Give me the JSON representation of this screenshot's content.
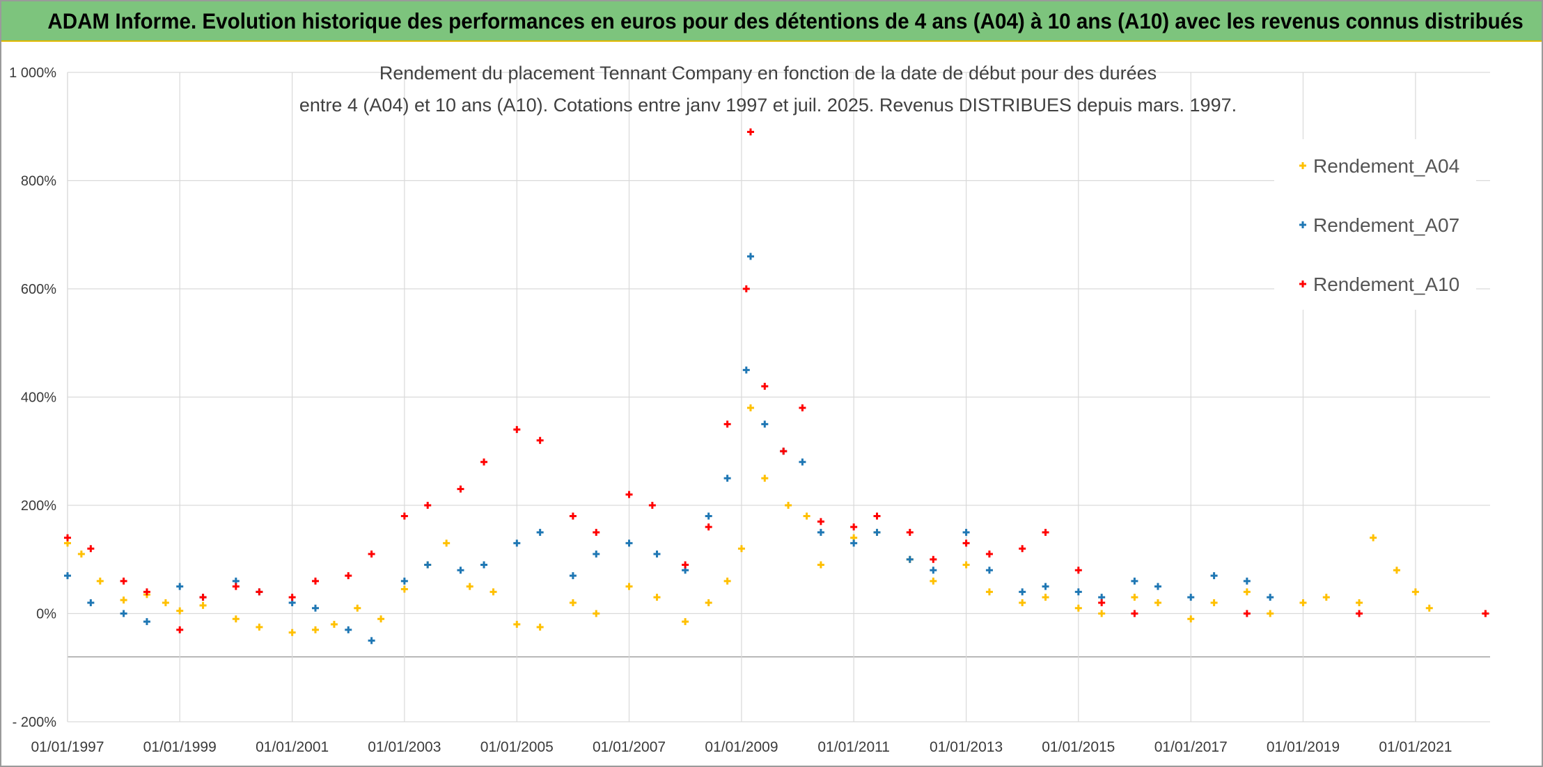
{
  "banner": {
    "text": "ADAM Informe. Evolution historique des performances en euros pour des détentions de 4 ans (A04) à 10 ans (A10) avec les revenus connus distribués"
  },
  "chart_data": {
    "type": "scatter",
    "title_line1": "Rendement du placement Tennant Company en fonction de la date de début pour des durées",
    "title_line2": "entre 4 (A04) et 10 ans (A10). Cotations entre janv 1997 et juil. 2025. Revenus DISTRIBUES depuis mars. 1997.",
    "xlabel": "",
    "ylabel": "",
    "x_range": [
      "1997-01-01",
      "2022-05-01"
    ],
    "ylim": [
      -200,
      1000
    ],
    "y_ticks": [
      {
        "value": -200,
        "label": "- 200%"
      },
      {
        "value": 0,
        "label": "0%"
      },
      {
        "value": 200,
        "label": "200%"
      },
      {
        "value": 400,
        "label": "400%"
      },
      {
        "value": 600,
        "label": "600%"
      },
      {
        "value": 800,
        "label": "800%"
      },
      {
        "value": 1000,
        "label": "1 000%"
      }
    ],
    "x_ticks": [
      "01/01/1997",
      "01/01/1999",
      "01/01/2001",
      "01/01/2003",
      "01/01/2005",
      "01/01/2007",
      "01/01/2009",
      "01/01/2011",
      "01/01/2013",
      "01/01/2015",
      "01/01/2017",
      "01/01/2019",
      "01/01/2021"
    ],
    "grid": true,
    "legend_position": "right",
    "marker": "+",
    "series": [
      {
        "name": "Rendement_A04",
        "color": "#ffc000",
        "points": [
          [
            "1997-01-01",
            130
          ],
          [
            "1997-04-01",
            110
          ],
          [
            "1997-08-01",
            60
          ],
          [
            "1998-01-01",
            25
          ],
          [
            "1998-06-01",
            35
          ],
          [
            "1998-10-01",
            20
          ],
          [
            "1999-01-01",
            5
          ],
          [
            "1999-06-01",
            15
          ],
          [
            "2000-01-01",
            -10
          ],
          [
            "2000-06-01",
            -25
          ],
          [
            "2001-01-01",
            -35
          ],
          [
            "2001-06-01",
            -30
          ],
          [
            "2001-10-01",
            -20
          ],
          [
            "2002-03-01",
            10
          ],
          [
            "2002-08-01",
            -10
          ],
          [
            "2003-01-01",
            45
          ],
          [
            "2003-06-01",
            90
          ],
          [
            "2003-10-01",
            130
          ],
          [
            "2004-03-01",
            50
          ],
          [
            "2004-08-01",
            40
          ],
          [
            "2005-01-01",
            -20
          ],
          [
            "2005-06-01",
            -25
          ],
          [
            "2006-01-01",
            20
          ],
          [
            "2006-06-01",
            0
          ],
          [
            "2007-01-01",
            50
          ],
          [
            "2007-07-01",
            30
          ],
          [
            "2008-01-01",
            -15
          ],
          [
            "2008-06-01",
            20
          ],
          [
            "2008-10-01",
            60
          ],
          [
            "2009-01-01",
            120
          ],
          [
            "2009-03-01",
            380
          ],
          [
            "2009-06-01",
            250
          ],
          [
            "2009-11-01",
            200
          ],
          [
            "2010-03-01",
            180
          ],
          [
            "2010-06-01",
            90
          ],
          [
            "2011-01-01",
            140
          ],
          [
            "2011-06-01",
            150
          ],
          [
            "2012-01-01",
            100
          ],
          [
            "2012-06-01",
            60
          ],
          [
            "2013-01-01",
            90
          ],
          [
            "2013-06-01",
            40
          ],
          [
            "2014-01-01",
            20
          ],
          [
            "2014-06-01",
            30
          ],
          [
            "2015-01-01",
            10
          ],
          [
            "2015-06-01",
            0
          ],
          [
            "2016-01-01",
            30
          ],
          [
            "2016-06-01",
            20
          ],
          [
            "2017-01-01",
            -10
          ],
          [
            "2017-06-01",
            20
          ],
          [
            "2018-01-01",
            40
          ],
          [
            "2018-06-01",
            0
          ],
          [
            "2019-01-01",
            20
          ],
          [
            "2019-06-01",
            30
          ],
          [
            "2020-01-01",
            20
          ],
          [
            "2020-04-01",
            140
          ],
          [
            "2020-09-01",
            80
          ],
          [
            "2021-01-01",
            40
          ],
          [
            "2021-04-01",
            10
          ],
          [
            "2022-04-01",
            0
          ]
        ]
      },
      {
        "name": "Rendement_A07",
        "color": "#1f77b4",
        "points": [
          [
            "1997-01-01",
            70
          ],
          [
            "1997-06-01",
            20
          ],
          [
            "1998-01-01",
            0
          ],
          [
            "1998-06-01",
            -15
          ],
          [
            "1999-01-01",
            50
          ],
          [
            "1999-06-01",
            30
          ],
          [
            "2000-01-01",
            60
          ],
          [
            "2000-06-01",
            40
          ],
          [
            "2001-01-01",
            20
          ],
          [
            "2001-06-01",
            10
          ],
          [
            "2002-01-01",
            -30
          ],
          [
            "2002-06-01",
            -50
          ],
          [
            "2003-01-01",
            60
          ],
          [
            "2003-06-01",
            90
          ],
          [
            "2004-01-01",
            80
          ],
          [
            "2004-06-01",
            90
          ],
          [
            "2005-01-01",
            130
          ],
          [
            "2005-06-01",
            150
          ],
          [
            "2006-01-01",
            70
          ],
          [
            "2006-06-01",
            110
          ],
          [
            "2007-01-01",
            130
          ],
          [
            "2007-07-01",
            110
          ],
          [
            "2008-01-01",
            80
          ],
          [
            "2008-06-01",
            180
          ],
          [
            "2008-10-01",
            250
          ],
          [
            "2009-02-01",
            450
          ],
          [
            "2009-03-01",
            660
          ],
          [
            "2009-06-01",
            350
          ],
          [
            "2009-10-01",
            300
          ],
          [
            "2010-02-01",
            280
          ],
          [
            "2010-06-01",
            150
          ],
          [
            "2011-01-01",
            130
          ],
          [
            "2011-06-01",
            150
          ],
          [
            "2012-01-01",
            100
          ],
          [
            "2012-06-01",
            80
          ],
          [
            "2013-01-01",
            150
          ],
          [
            "2013-06-01",
            80
          ],
          [
            "2014-01-01",
            40
          ],
          [
            "2014-06-01",
            50
          ],
          [
            "2015-01-01",
            40
          ],
          [
            "2015-06-01",
            30
          ],
          [
            "2016-01-01",
            60
          ],
          [
            "2016-06-01",
            50
          ],
          [
            "2017-01-01",
            30
          ],
          [
            "2017-06-01",
            70
          ],
          [
            "2018-01-01",
            60
          ],
          [
            "2018-06-01",
            30
          ]
        ]
      },
      {
        "name": "Rendement_A10",
        "color": "#ff0000",
        "points": [
          [
            "1997-01-01",
            140
          ],
          [
            "1997-06-01",
            120
          ],
          [
            "1998-01-01",
            60
          ],
          [
            "1998-06-01",
            40
          ],
          [
            "1999-01-01",
            -30
          ],
          [
            "1999-06-01",
            30
          ],
          [
            "2000-01-01",
            50
          ],
          [
            "2000-06-01",
            40
          ],
          [
            "2001-01-01",
            30
          ],
          [
            "2001-06-01",
            60
          ],
          [
            "2002-01-01",
            70
          ],
          [
            "2002-06-01",
            110
          ],
          [
            "2003-01-01",
            180
          ],
          [
            "2003-06-01",
            200
          ],
          [
            "2004-01-01",
            230
          ],
          [
            "2004-06-01",
            280
          ],
          [
            "2005-01-01",
            340
          ],
          [
            "2005-06-01",
            320
          ],
          [
            "2006-01-01",
            180
          ],
          [
            "2006-06-01",
            150
          ],
          [
            "2007-01-01",
            220
          ],
          [
            "2007-06-01",
            200
          ],
          [
            "2008-01-01",
            90
          ],
          [
            "2008-06-01",
            160
          ],
          [
            "2008-10-01",
            350
          ],
          [
            "2009-02-01",
            600
          ],
          [
            "2009-03-01",
            890
          ],
          [
            "2009-06-01",
            420
          ],
          [
            "2009-10-01",
            300
          ],
          [
            "2010-02-01",
            380
          ],
          [
            "2010-06-01",
            170
          ],
          [
            "2011-01-01",
            160
          ],
          [
            "2011-06-01",
            180
          ],
          [
            "2012-01-01",
            150
          ],
          [
            "2012-06-01",
            100
          ],
          [
            "2013-01-01",
            130
          ],
          [
            "2013-06-01",
            110
          ],
          [
            "2014-01-01",
            120
          ],
          [
            "2014-06-01",
            150
          ],
          [
            "2015-01-01",
            80
          ],
          [
            "2015-06-01",
            20
          ],
          [
            "2016-01-01",
            0
          ],
          [
            "2018-01-01",
            0
          ],
          [
            "2020-01-01",
            0
          ],
          [
            "2022-04-01",
            0
          ]
        ]
      }
    ]
  }
}
